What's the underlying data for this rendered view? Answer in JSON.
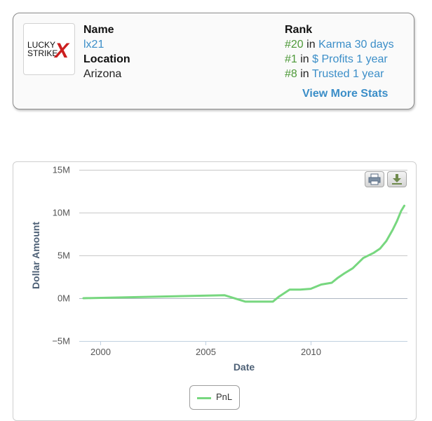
{
  "profile": {
    "logo": {
      "line1": "LUCKY",
      "line2": "STRIKE",
      "mark": "X"
    },
    "name_label": "Name",
    "name_value": "lx21",
    "location_label": "Location",
    "location_value": "Arizona",
    "rank_label": "Rank",
    "ranks": [
      {
        "num": "#20",
        "sep": "in",
        "link": "Karma 30 days"
      },
      {
        "num": "#1",
        "sep": "in",
        "link": "$ Profits 1 year"
      },
      {
        "num": "#8",
        "sep": "in",
        "link": "Trusted 1 year"
      }
    ],
    "view_more": "View More Stats"
  },
  "toolbar": {
    "print_icon": "printer-icon",
    "export_icon": "download-icon"
  },
  "chart_data": {
    "type": "line",
    "title": "",
    "xlabel": "Date",
    "ylabel": "Dollar Amount",
    "xlim": [
      1999.0,
      2014.6
    ],
    "ylim": [
      -5000000,
      15000000
    ],
    "x_ticks": [
      2000,
      2005,
      2010
    ],
    "x_tick_labels": [
      "2000",
      "2005",
      "2010"
    ],
    "y_ticks": [
      -5000000,
      0,
      5000000,
      10000000,
      15000000
    ],
    "y_tick_labels": [
      "−5M",
      "0M",
      "5M",
      "10M",
      "15M"
    ],
    "grid": true,
    "legend": {
      "position": "bottom-center"
    },
    "series": [
      {
        "name": "PnL",
        "color": "#77d77f",
        "x": [
          1999.2,
          2005.9,
          2006.9,
          2008.2,
          2008.5,
          2009.0,
          2009.5,
          2010.0,
          2010.5,
          2011.0,
          2011.3,
          2011.6,
          2012.0,
          2012.5,
          2013.0,
          2013.3,
          2013.6,
          2013.9,
          2014.1,
          2014.3,
          2014.45
        ],
        "y": [
          0,
          350000,
          -400000,
          -400000,
          200000,
          1000000,
          1000000,
          1100000,
          1600000,
          1800000,
          2400000,
          2900000,
          3500000,
          4700000,
          5300000,
          5800000,
          6700000,
          8000000,
          9000000,
          10200000,
          10800000
        ]
      }
    ]
  }
}
